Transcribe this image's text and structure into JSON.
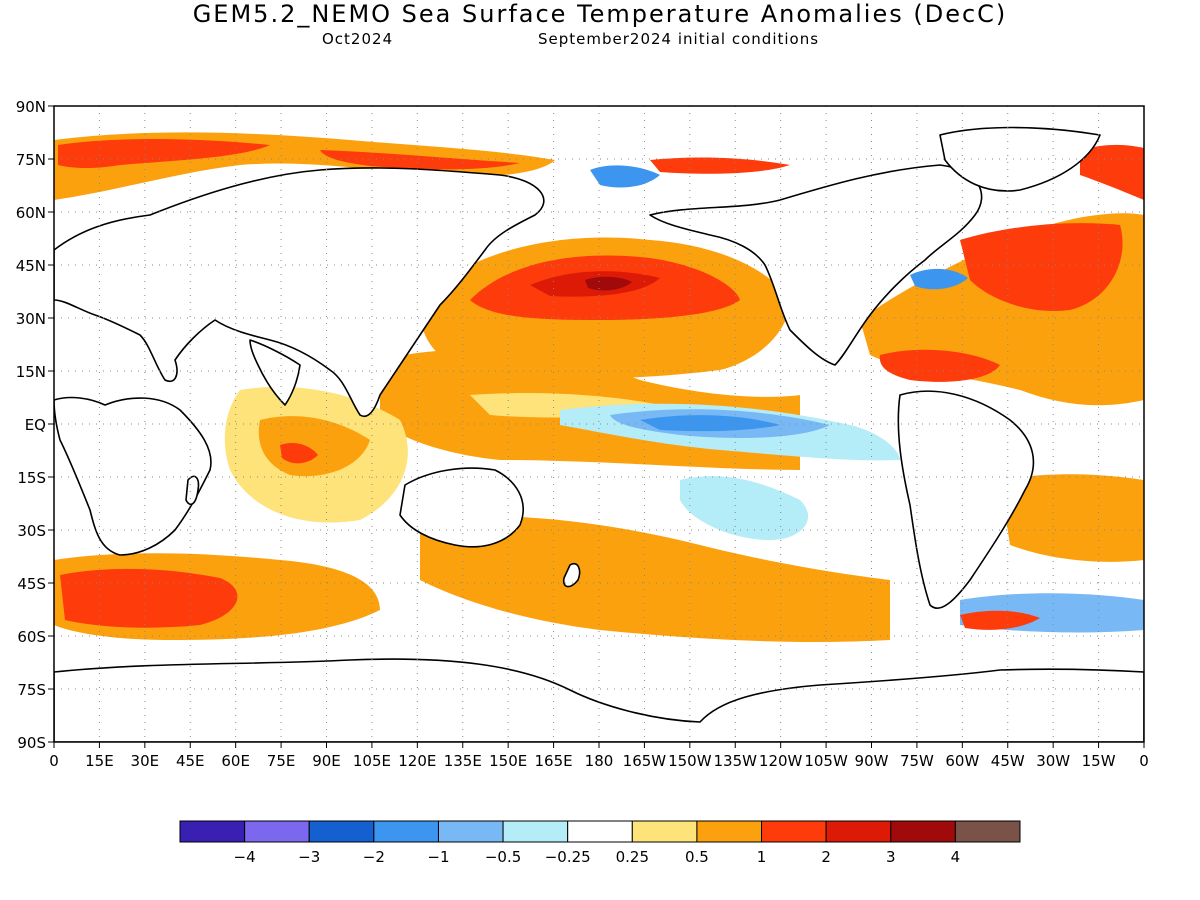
{
  "header": {
    "title": "GEM5.2_NEMO Sea Surface Temperature Anomalies (DecC)",
    "valid_month": "Oct2024",
    "init": "September2024 initial conditions"
  },
  "map": {
    "lat_labels": [
      "90N",
      "75N",
      "60N",
      "45N",
      "30N",
      "15N",
      "EQ",
      "15S",
      "30S",
      "45S",
      "60S",
      "75S",
      "90S"
    ],
    "lon_labels": [
      "0",
      "15E",
      "30E",
      "45E",
      "60E",
      "75E",
      "90E",
      "105E",
      "120E",
      "135E",
      "150E",
      "165E",
      "180",
      "165W",
      "150W",
      "135W",
      "120W",
      "105W",
      "90W",
      "75W",
      "60W",
      "45W",
      "30W",
      "15W",
      "0"
    ],
    "grid": "dotted"
  },
  "colorbar": {
    "colors": [
      "#3a1fb3",
      "#7b68ee",
      "#1560d0",
      "#3c96ef",
      "#78b8f4",
      "#b4ecf8",
      "#ffffff",
      "#fde37a",
      "#fca10e",
      "#fd3b0b",
      "#dd1a06",
      "#a10a0a",
      "#7a5247"
    ],
    "labels": [
      "−4",
      "−3",
      "−2",
      "−1",
      "−0.5",
      "−0.25",
      "0.25",
      "0.5",
      "1",
      "2",
      "3",
      "4"
    ]
  }
}
